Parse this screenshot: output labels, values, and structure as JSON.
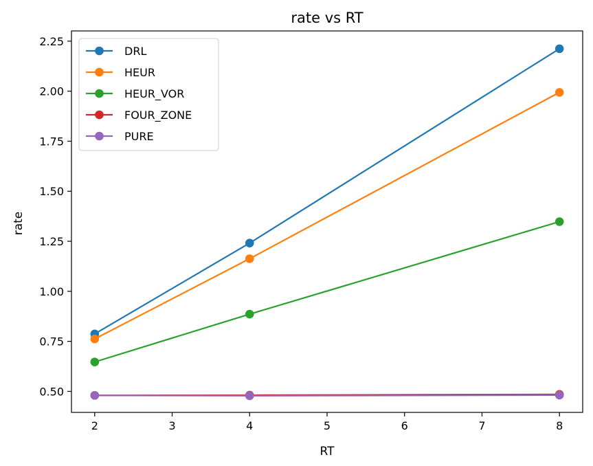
{
  "chart_data": {
    "type": "line",
    "title": "rate vs RT",
    "xlabel": "RT",
    "ylabel": "rate",
    "x": [
      2,
      4,
      8
    ],
    "xlim": [
      1.7,
      8.3
    ],
    "ylim": [
      0.395,
      2.301
    ],
    "xticks": [
      2,
      3,
      4,
      5,
      6,
      7,
      8
    ],
    "xtick_labels": [
      "2",
      "3",
      "4",
      "5",
      "6",
      "7",
      "8"
    ],
    "yticks": [
      0.5,
      0.75,
      1.0,
      1.25,
      1.5,
      1.75,
      2.0,
      2.25
    ],
    "ytick_labels": [
      "0.50",
      "0.75",
      "1.00",
      "1.25",
      "1.50",
      "1.75",
      "2.00",
      "2.25"
    ],
    "grid": false,
    "legend_position": "top-left",
    "series": [
      {
        "name": "DRL",
        "color": "#1f77b4",
        "values": [
          0.787,
          1.241,
          2.212
        ]
      },
      {
        "name": "HEUR",
        "color": "#ff7f0e",
        "values": [
          0.762,
          1.163,
          1.994
        ]
      },
      {
        "name": "HEUR_VOR",
        "color": "#2ca02c",
        "values": [
          0.647,
          0.886,
          1.348
        ]
      },
      {
        "name": "FOUR_ZONE",
        "color": "#d62728",
        "values": [
          0.48,
          0.481,
          0.485
        ]
      },
      {
        "name": "PURE",
        "color": "#9467bd",
        "values": [
          0.48,
          0.478,
          0.481
        ]
      }
    ]
  }
}
